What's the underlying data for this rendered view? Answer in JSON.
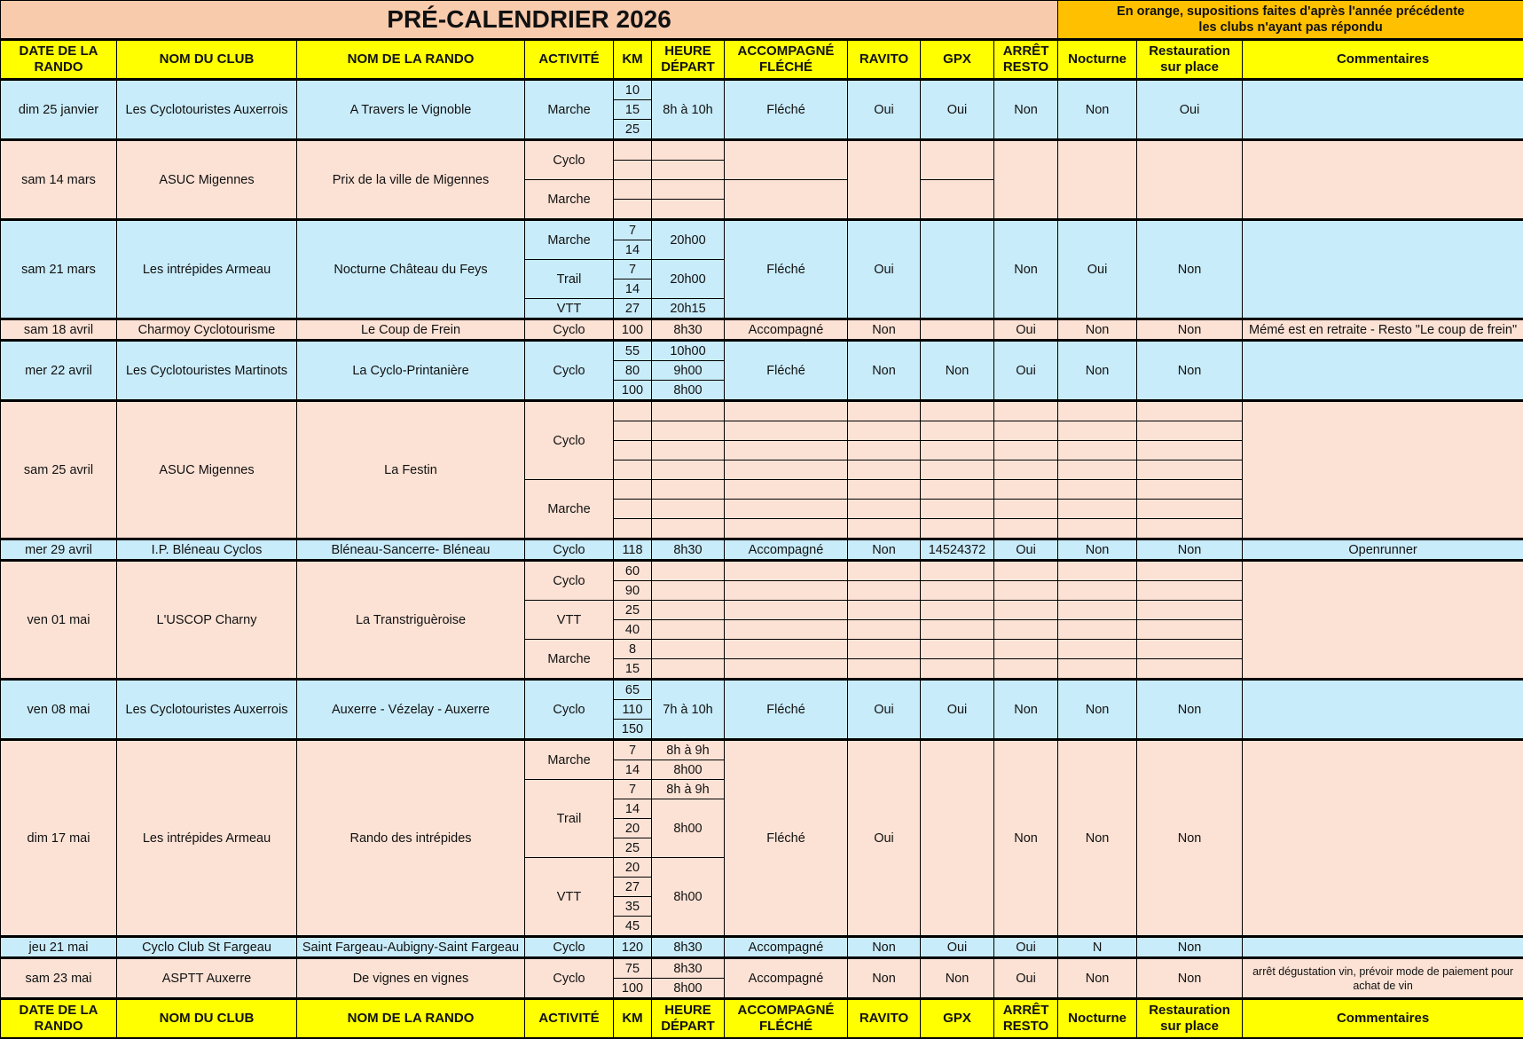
{
  "title": "PRÉ-CALENDRIER 2026",
  "note_line1": "En orange, supositions faites d'après l'année précédente",
  "note_line2": "les clubs n'ayant pas répondu",
  "colors": {
    "title_bg": "#F8CBAD",
    "note_bg": "#FFC000",
    "header_bg": "#FFFF00",
    "blue_row": "#C9ECFA",
    "orange_row": "#FCE2D5"
  },
  "headers": {
    "date": "DATE DE LA RANDO",
    "club": "NOM DU CLUB",
    "rando": "NOM DE LA RANDO",
    "activite": "ACTIVITÉ",
    "km": "KM",
    "heure": "HEURE DÉPART",
    "accomp": "ACCOMPAGNÉ FLÉCHÉ",
    "ravito": "RAVITO",
    "gpx": "GPX",
    "arret": "ARRÊT RESTO",
    "nocturne": "Nocturne",
    "resto": "Restauration sur place",
    "comment": "Commentaires"
  },
  "events": [
    {
      "color": "blue",
      "rows": 3,
      "date": "dim 25 janvier",
      "club": "Les Cyclotouristes Auxerrois",
      "rando": "A Travers le Vignoble",
      "activite": [
        {
          "t": "Marche",
          "span": 3
        }
      ],
      "km": [
        {
          "t": "10",
          "span": 1
        },
        {
          "t": "15",
          "span": 1
        },
        {
          "t": "25",
          "span": 1
        }
      ],
      "heure": [
        {
          "t": "8h à 10h",
          "span": 3
        }
      ],
      "accomp": "Fléché",
      "ravito": "Oui",
      "gpx": "Oui",
      "arret": "Non",
      "nocturne": "Non",
      "resto": "Oui",
      "comment": ""
    },
    {
      "color": "orange",
      "rows": 4,
      "date": "sam 14 mars",
      "club": "ASUC Migennes",
      "rando": "Prix de la ville de Migennes",
      "activite": [
        {
          "t": "Cyclo",
          "span": 2
        },
        {
          "t": "Marche",
          "span": 2
        }
      ],
      "km": [
        {
          "t": "",
          "span": 1
        },
        {
          "t": "",
          "span": 1
        },
        {
          "t": "",
          "span": 1
        },
        {
          "t": "",
          "span": 1
        }
      ],
      "heure": [
        {
          "t": "",
          "span": 1
        },
        {
          "t": "",
          "span": 1
        },
        {
          "t": "",
          "span": 1
        },
        {
          "t": "",
          "span": 1
        }
      ],
      "accomp": [
        {
          "t": "",
          "span": 2
        },
        {
          "t": "",
          "span": 2
        }
      ],
      "ravito": "",
      "gpx": [
        {
          "t": "",
          "span": 2
        },
        {
          "t": "",
          "span": 2
        }
      ],
      "arret": "",
      "nocturne": "",
      "resto": "",
      "comment": ""
    },
    {
      "color": "blue",
      "rows": 5,
      "date": "sam 21 mars",
      "club": "Les intrépides Armeau",
      "rando": "Nocturne Château du Feys",
      "activite": [
        {
          "t": "Marche",
          "span": 2
        },
        {
          "t": "Trail",
          "span": 2
        },
        {
          "t": "VTT",
          "span": 1
        }
      ],
      "km": [
        {
          "t": "7",
          "span": 1
        },
        {
          "t": "14",
          "span": 1
        },
        {
          "t": "7",
          "span": 1
        },
        {
          "t": "14",
          "span": 1
        },
        {
          "t": "27",
          "span": 1
        }
      ],
      "heure": [
        {
          "t": "20h00",
          "span": 2
        },
        {
          "t": "20h00",
          "span": 2
        },
        {
          "t": "20h15",
          "span": 1
        }
      ],
      "accomp": "Fléché",
      "ravito": "Oui",
      "gpx": "",
      "arret": "Non",
      "nocturne": "Oui",
      "resto": "Non",
      "comment": ""
    },
    {
      "color": "orange",
      "rows": 1,
      "date": "sam 18 avril",
      "club": "Charmoy Cyclotourisme",
      "rando": "Le Coup de Frein",
      "activite": "Cyclo",
      "km": "100",
      "heure": "8h30",
      "accomp": "Accompagné",
      "ravito": "Non",
      "gpx": "",
      "arret": "Oui",
      "nocturne": "Non",
      "resto": "Non",
      "comment": "Mémé est en retraite - Resto \"Le coup de frein\""
    },
    {
      "color": "blue",
      "rows": 3,
      "date": "mer 22 avril",
      "club": "Les Cyclotouristes Martinots",
      "rando": "La Cyclo-Printanière",
      "activite": [
        {
          "t": "Cyclo",
          "span": 3
        }
      ],
      "km": [
        {
          "t": "55",
          "span": 1
        },
        {
          "t": "80",
          "span": 1
        },
        {
          "t": "100",
          "span": 1
        }
      ],
      "heure": [
        {
          "t": "10h00",
          "span": 1
        },
        {
          "t": "9h00",
          "span": 1
        },
        {
          "t": "8h00",
          "span": 1
        }
      ],
      "accomp": "Fléché",
      "ravito": "Non",
      "gpx": "Non",
      "arret": "Oui",
      "nocturne": "Non",
      "resto": "Non",
      "comment": ""
    },
    {
      "color": "orange",
      "rows": 7,
      "date": "sam 25 avril",
      "club": "ASUC Migennes",
      "rando": "La Festin",
      "activite": [
        {
          "t": "Cyclo",
          "span": 4
        },
        {
          "t": "Marche",
          "span": 3
        }
      ],
      "split": true,
      "comment": ""
    },
    {
      "color": "blue",
      "rows": 1,
      "date": "mer 29 avril",
      "club": "I.P. Bléneau Cyclos",
      "rando": "Bléneau-Sancerre- Bléneau",
      "activite": "Cyclo",
      "km": "118",
      "heure": "8h30",
      "accomp": "Accompagné",
      "ravito": "Non",
      "gpx": "14524372",
      "arret": "Oui",
      "nocturne": "Non",
      "resto": "Non",
      "comment": "Openrunner"
    },
    {
      "color": "orange",
      "rows": 6,
      "date": "ven 01 mai",
      "club": "L'USCOP Charny",
      "rando": "La Transtriguèroise",
      "activite": [
        {
          "t": "Cyclo",
          "span": 2
        },
        {
          "t": "VTT",
          "span": 2
        },
        {
          "t": "Marche",
          "span": 2
        }
      ],
      "km": [
        {
          "t": "60",
          "span": 1
        },
        {
          "t": "90",
          "span": 1
        },
        {
          "t": "25",
          "span": 1
        },
        {
          "t": "40",
          "span": 1
        },
        {
          "t": "8",
          "span": 1
        },
        {
          "t": "15",
          "span": 1
        }
      ],
      "split": true,
      "comment": ""
    },
    {
      "color": "blue",
      "rows": 3,
      "date": "ven 08 mai",
      "club": "Les Cyclotouristes Auxerrois",
      "rando": "Auxerre - Vézelay - Auxerre",
      "activite": [
        {
          "t": "Cyclo",
          "span": 3
        }
      ],
      "km": [
        {
          "t": "65",
          "span": 1
        },
        {
          "t": "110",
          "span": 1
        },
        {
          "t": "150",
          "span": 1
        }
      ],
      "heure": [
        {
          "t": "7h à 10h",
          "span": 3
        }
      ],
      "accomp": "Fléché",
      "ravito": "Oui",
      "gpx": "Oui",
      "arret": "Non",
      "nocturne": "Non",
      "resto": "Non",
      "comment": ""
    },
    {
      "color": "orange",
      "rows": 10,
      "date": "dim 17 mai",
      "club": "Les intrépides Armeau",
      "rando": "Rando des intrépides",
      "activite": [
        {
          "t": "Marche",
          "span": 2
        },
        {
          "t": "Trail",
          "span": 4
        },
        {
          "t": "VTT",
          "span": 4
        }
      ],
      "km": [
        {
          "t": "7",
          "span": 1
        },
        {
          "t": "14",
          "span": 1
        },
        {
          "t": "7",
          "span": 1
        },
        {
          "t": "14",
          "span": 1
        },
        {
          "t": "20",
          "span": 1
        },
        {
          "t": "25",
          "span": 1
        },
        {
          "t": "20",
          "span": 1
        },
        {
          "t": "27",
          "span": 1
        },
        {
          "t": "35",
          "span": 1
        },
        {
          "t": "45",
          "span": 1
        }
      ],
      "heure": [
        {
          "t": "8h à 9h",
          "span": 1
        },
        {
          "t": "8h00",
          "span": 1
        },
        {
          "t": "8h à 9h",
          "span": 1
        },
        {
          "t": "8h00",
          "span": 3
        },
        {
          "t": "8h00",
          "span": 4
        }
      ],
      "accomp": "Fléché",
      "ravito": "Oui",
      "gpx": "",
      "arret": "Non",
      "nocturne": "Non",
      "resto": "Non",
      "comment": ""
    },
    {
      "color": "blue",
      "rows": 1,
      "date": "jeu 21 mai",
      "club": "Cyclo Club St Fargeau",
      "rando": "Saint Fargeau-Aubigny-Saint Fargeau",
      "activite": "Cyclo",
      "km": "120",
      "heure": "8h30",
      "accomp": "Accompagné",
      "ravito": "Non",
      "gpx": "Oui",
      "arret": "Oui",
      "nocturne": "N",
      "resto": "Non",
      "comment": ""
    },
    {
      "color": "orange",
      "rows": 2,
      "date": "sam 23 mai",
      "club": "ASPTT Auxerre",
      "rando": "De vignes en vignes",
      "activite": [
        {
          "t": "Cyclo",
          "span": 2
        }
      ],
      "km": [
        {
          "t": "75",
          "span": 1
        },
        {
          "t": "100",
          "span": 1
        }
      ],
      "heure": [
        {
          "t": "8h30",
          "span": 1
        },
        {
          "t": "8h00",
          "span": 1
        }
      ],
      "accomp": "Accompagné",
      "ravito": "Non",
      "gpx": "Non",
      "arret": "Oui",
      "nocturne": "Non",
      "resto": "Non",
      "comment": "arrêt dégustation vin, prévoir mode de paiement pour achat de vin"
    }
  ]
}
